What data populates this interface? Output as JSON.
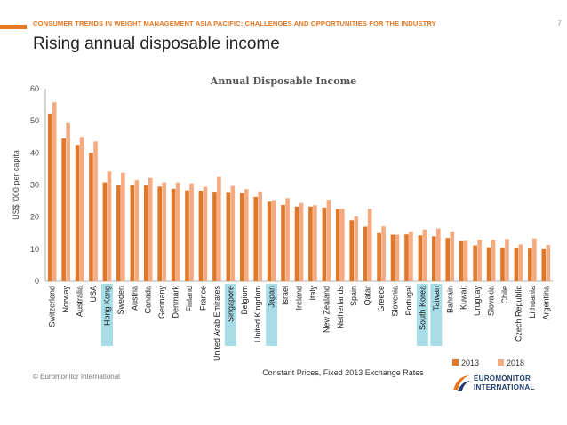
{
  "header": {
    "subtitle": "CONSUMER TRENDS IN WEIGHT MANAGEMENT ASIA PACIFIC: CHALLENGES AND OPPORTUNITIES FOR THE INDUSTRY",
    "page_number": "7",
    "title": "Rising annual disposable income"
  },
  "footer": {
    "copyright": "© Euromonitor International",
    "logo_line1": "EUROMONITOR",
    "logo_line2": "INTERNATIONAL"
  },
  "colors": {
    "accent": "#e87722",
    "series_2013": "#e0782a",
    "series_2018": "#f5aa80",
    "highlight": "#a8dde8"
  },
  "chart_data": {
    "type": "bar",
    "title": "Annual Disposable Income",
    "ylabel": "US$ '000 per capita",
    "xlabel": "",
    "note": "Constant Prices,  Fixed 2013 Exchange Rates",
    "ylim": [
      0,
      60
    ],
    "yticks": [
      0,
      10,
      20,
      30,
      40,
      50,
      60
    ],
    "categories": [
      "Switzerland",
      "Norway",
      "Australia",
      "USA",
      "Hong Kong",
      "Sweden",
      "Austria",
      "Canada",
      "Germany",
      "Denmark",
      "Finland",
      "France",
      "United Arab Emirates",
      "Singapore",
      "Belgium",
      "United Kingdom",
      "Japan",
      "Israel",
      "Ireland",
      "Italy",
      "New Zealand",
      "Netherlands",
      "Spain",
      "Qatar",
      "Greece",
      "Slovenia",
      "Portugal",
      "South Korea",
      "Taiwan",
      "Bahrain",
      "Kuwait",
      "Uruguay",
      "Slovakia",
      "Chile",
      "Czech Republic",
      "Lithuania",
      "Argentina"
    ],
    "highlighted": [
      "Hong Kong",
      "Singapore",
      "Japan",
      "South Korea",
      "Taiwan"
    ],
    "series": [
      {
        "name": "2013",
        "values": [
          52.3,
          44.5,
          42.5,
          40.0,
          30.8,
          30.0,
          30.0,
          30.0,
          29.5,
          28.8,
          28.3,
          28.2,
          27.9,
          27.8,
          27.5,
          26.3,
          24.8,
          23.8,
          23.3,
          23.3,
          23.0,
          22.5,
          19.0,
          17.0,
          15.0,
          14.5,
          14.6,
          14.3,
          14.0,
          13.5,
          12.5,
          11.2,
          10.6,
          10.5,
          10.3,
          10.2,
          10.0
        ]
      },
      {
        "name": "2018",
        "values": [
          55.8,
          49.3,
          45.0,
          43.6,
          34.2,
          33.8,
          31.5,
          32.1,
          30.8,
          30.8,
          30.5,
          29.4,
          32.7,
          29.7,
          28.7,
          28.0,
          25.3,
          25.9,
          24.4,
          23.7,
          25.4,
          22.6,
          20.2,
          22.6,
          17.1,
          14.5,
          15.5,
          16.1,
          16.4,
          15.5,
          12.6,
          13.0,
          12.9,
          13.2,
          11.5,
          13.4,
          11.3
        ]
      }
    ],
    "legend": {
      "position": "bottom-right",
      "labels": [
        "2013",
        "2018"
      ]
    }
  }
}
